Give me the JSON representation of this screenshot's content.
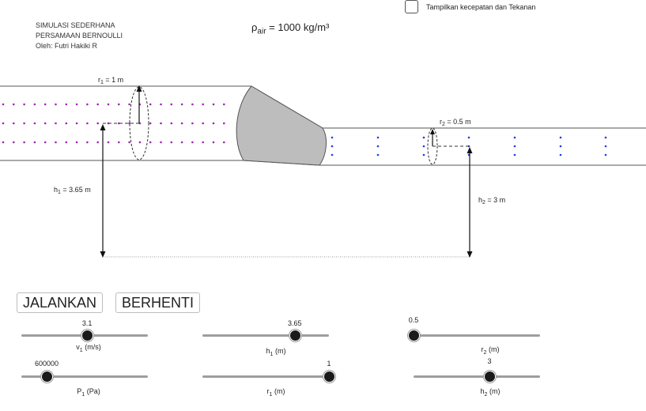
{
  "credits": {
    "line1": "SIMULASI SEDERHANA",
    "line2": "PERSAMAAN BERNOULLI",
    "line3": "Oleh: Futri Hakiki R"
  },
  "density": {
    "symbol": "ρ",
    "subscript": "air",
    "value": " = 1000 kg/m³"
  },
  "toggle": {
    "label": "Tampilkan kecepatan dan Tekanan",
    "checked": false
  },
  "diagram": {
    "r1_label": "r",
    "r1_sub": "1",
    "r1_value": " = 1 m",
    "r2_label": "r",
    "r2_sub": "2",
    "r2_value": " = 0.5 m",
    "h1_label": "h",
    "h1_sub": "1",
    "h1_value": " = 3.65 m",
    "h2_label": "h",
    "h2_sub": "2",
    "h2_value": " = 3 m"
  },
  "buttons": {
    "run": "JALANKAN",
    "stop": "BERHENTI"
  },
  "colors": {
    "particles_left": "#9c27b0",
    "particles_right": "#1e3fd8",
    "funnel": "#bdbdbd"
  },
  "sliders": [
    {
      "id": "v1",
      "value": "3.1",
      "name": "v",
      "sub": "1",
      "unit": " (m/s)",
      "fraction": 0.52
    },
    {
      "id": "p1",
      "value": "600000",
      "name": "P",
      "sub": "1",
      "unit": " (Pa)",
      "fraction": 0.2
    },
    {
      "id": "h1",
      "value": "3.65",
      "name": "h",
      "sub": "1",
      "unit": " (m)",
      "fraction": 0.73
    },
    {
      "id": "r1",
      "value": "1",
      "name": "r",
      "sub": "1",
      "unit": " (m)",
      "fraction": 1.0
    },
    {
      "id": "r2",
      "value": "0.5",
      "name": "r",
      "sub": "2",
      "unit": " (m)",
      "fraction": 0.0
    },
    {
      "id": "h2",
      "value": "3",
      "name": "h",
      "sub": "2",
      "unit": " (m)",
      "fraction": 0.6
    }
  ]
}
